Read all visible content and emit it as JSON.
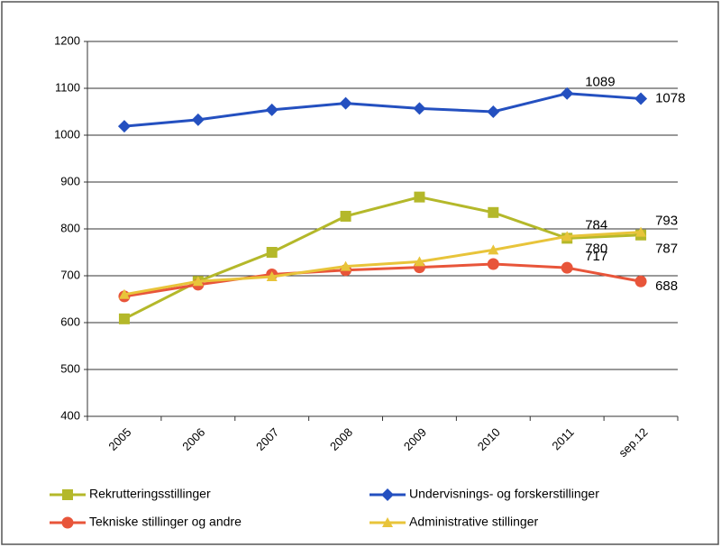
{
  "chart_data": {
    "type": "line",
    "categories": [
      "2005",
      "2006",
      "2007",
      "2008",
      "2009",
      "2010",
      "2011",
      "sep.12"
    ],
    "series": [
      {
        "name": "Rekrutteringsstillinger",
        "color": "#b4b82a",
        "marker": "square",
        "values": [
          608,
          688,
          750,
          827,
          868,
          835,
          780,
          787
        ],
        "value_labels": [
          null,
          null,
          null,
          null,
          null,
          null,
          "780",
          "787"
        ]
      },
      {
        "name": "Undervisnings- og forskerstillinger",
        "color": "#2450c0",
        "marker": "diamond",
        "values": [
          1019,
          1033,
          1054,
          1068,
          1057,
          1050,
          1089,
          1078
        ],
        "value_labels": [
          null,
          null,
          null,
          null,
          null,
          null,
          "1089",
          "1078"
        ]
      },
      {
        "name": "Tekniske stillinger og andre",
        "color": "#e8553a",
        "marker": "circle",
        "values": [
          656,
          681,
          703,
          712,
          718,
          725,
          717,
          688
        ],
        "value_labels": [
          null,
          null,
          null,
          null,
          null,
          null,
          "717",
          "688"
        ]
      },
      {
        "name": "Administrative stillinger",
        "color": "#e8c43a",
        "marker": "triangle",
        "values": [
          660,
          688,
          698,
          720,
          730,
          755,
          784,
          793
        ],
        "value_labels": [
          null,
          null,
          null,
          null,
          null,
          null,
          "784",
          "793"
        ]
      }
    ],
    "ylim": [
      400,
      1200
    ],
    "yticks": [
      400,
      500,
      600,
      700,
      800,
      900,
      1000,
      1100,
      1200
    ],
    "grid": true
  }
}
